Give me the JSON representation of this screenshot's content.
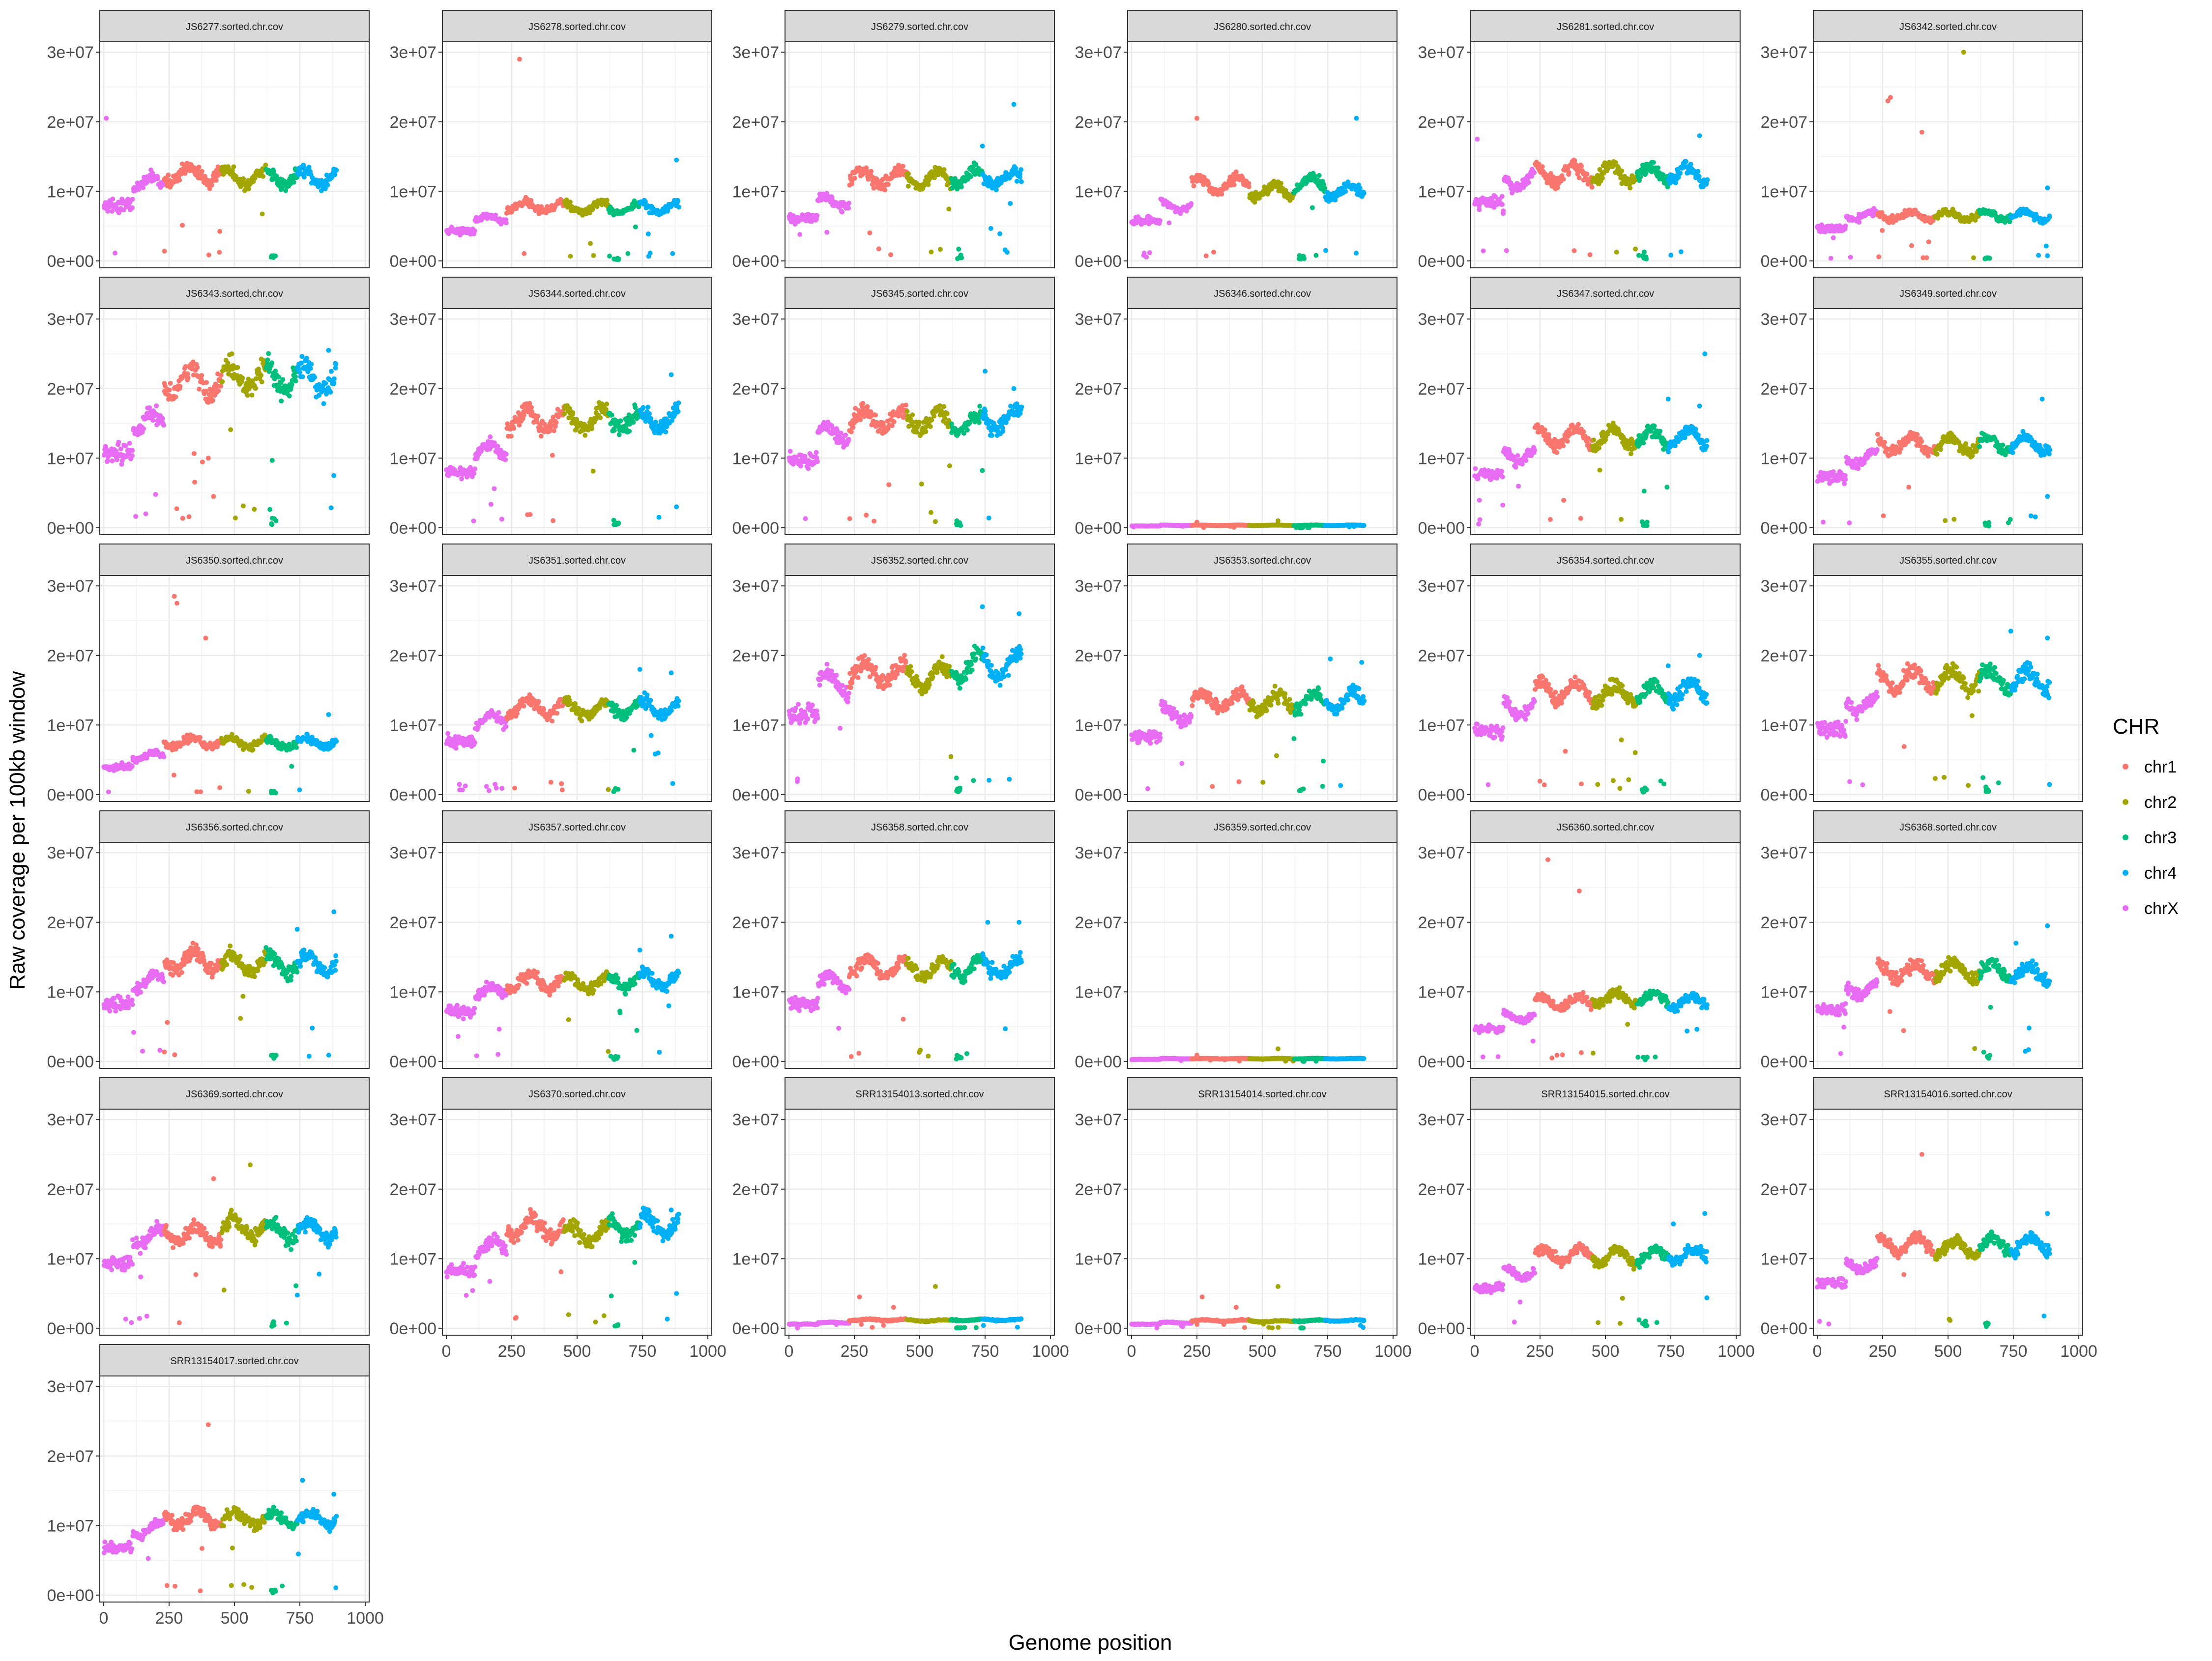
{
  "chart_data": {
    "type": "scatter",
    "facet_layout": "wrap, 6 columns, 6 rows",
    "xlabel": "Genome position",
    "ylabel": "Raw coverage per 100kb window",
    "xlim": [
      -15,
      1015
    ],
    "ylim": [
      -1000000,
      31500000
    ],
    "x_ticks": [
      0,
      250,
      500,
      750,
      1000
    ],
    "x_tick_labels": [
      "0",
      "250",
      "500",
      "750",
      "1000"
    ],
    "y_ticks": [
      0,
      10000000,
      20000000,
      30000000
    ],
    "y_tick_labels": [
      "0e+00",
      "1e+07",
      "2e+07",
      "3e+07"
    ],
    "grid": true,
    "legend": {
      "title": "CHR",
      "position": "right",
      "entries": [
        "chr1",
        "chr2",
        "chr3",
        "chr4",
        "chrX"
      ]
    },
    "series_colors": {
      "chrX": "#E76BF3",
      "chr1": "#F8766D",
      "chr2": "#A3A500",
      "chr3": "#00BF7D",
      "chr4": "#00B0F6"
    },
    "chromosome_ranges": {
      "chrX": [
        0,
        230
      ],
      "chr1": [
        230,
        450
      ],
      "chr2": [
        450,
        620
      ],
      "chr3": [
        620,
        740
      ],
      "chr4": [
        740,
        890
      ]
    },
    "facets": [
      {
        "title": "JS6277.sorted.chr.cov",
        "median_coverage": {
          "chrX": 11000000,
          "chr1": 12500000,
          "chr2": 12000000,
          "chr3": 12000000,
          "chr4": 12000000
        },
        "outliers": [
          [
            10,
            20500000
          ]
        ]
      },
      {
        "title": "JS6278.sorted.chr.cov",
        "median_coverage": {
          "chrX": 6000000,
          "chr1": 7800000,
          "chr2": 7700000,
          "chr3": 7500000,
          "chr4": 7700000
        },
        "outliers": [
          [
            280,
            29000000
          ],
          [
            880,
            14500000
          ]
        ]
      },
      {
        "title": "JS6279.sorted.chr.cov",
        "median_coverage": {
          "chrX": 8500000,
          "chr1": 12000000,
          "chr2": 11800000,
          "chr3": 12000000,
          "chr4": 11800000
        },
        "outliers": [
          [
            860,
            22500000
          ],
          [
            740,
            16500000
          ]
        ]
      },
      {
        "title": "JS6280.sorted.chr.cov",
        "median_coverage": {
          "chrX": 8000000,
          "chr1": 11000000,
          "chr2": 10000000,
          "chr3": 11000000,
          "chr4": 10000000
        },
        "outliers": [
          [
            250,
            20500000
          ],
          [
            860,
            20500000
          ]
        ]
      },
      {
        "title": "JS6281.sorted.chr.cov",
        "median_coverage": {
          "chrX": 11500000,
          "chr1": 12500000,
          "chr2": 12500000,
          "chr3": 12500000,
          "chr4": 12500000
        },
        "outliers": [
          [
            860,
            18000000
          ],
          [
            10,
            17500000
          ]
        ]
      },
      {
        "title": "JS6342.sorted.chr.cov",
        "median_coverage": {
          "chrX": 6500000,
          "chr1": 6500000,
          "chr2": 6500000,
          "chr3": 6500000,
          "chr4": 6500000
        },
        "outliers": [
          [
            560,
            30000000
          ],
          [
            280,
            23500000
          ],
          [
            270,
            23000000
          ],
          [
            400,
            18500000
          ],
          [
            880,
            10500000
          ]
        ]
      },
      {
        "title": "JS6343.sorted.chr.cov",
        "median_coverage": {
          "chrX": 15000000,
          "chr1": 21000000,
          "chr2": 21500000,
          "chr3": 21500000,
          "chr4": 21500000
        },
        "outliers": [
          [
            860,
            25500000
          ],
          [
            490,
            25000000
          ],
          [
            400,
            10000000
          ],
          [
            420,
            4500000
          ],
          [
            880,
            7500000
          ]
        ]
      },
      {
        "title": "JS6344.sorted.chr.cov",
        "median_coverage": {
          "chrX": 11000000,
          "chr1": 15500000,
          "chr2": 15500000,
          "chr3": 15500000,
          "chr4": 15500000
        },
        "outliers": [
          [
            860,
            22000000
          ],
          [
            880,
            3000000
          ]
        ]
      },
      {
        "title": "JS6345.sorted.chr.cov",
        "median_coverage": {
          "chrX": 13500000,
          "chr1": 15500000,
          "chr2": 15500000,
          "chr3": 15000000,
          "chr4": 15500000
        },
        "outliers": [
          [
            750,
            22500000
          ],
          [
            860,
            20000000
          ]
        ]
      },
      {
        "title": "JS6346.sorted.chr.cov",
        "median_coverage": {
          "chrX": 350000,
          "chr1": 350000,
          "chr2": 350000,
          "chr3": 350000,
          "chr4": 350000
        },
        "outliers": [
          [
            560,
            1000000
          ],
          [
            250,
            800000
          ]
        ]
      },
      {
        "title": "JS6347.sorted.chr.cov",
        "median_coverage": {
          "chrX": 10500000,
          "chr1": 13000000,
          "chr2": 12800000,
          "chr3": 13000000,
          "chr4": 13000000
        },
        "outliers": [
          [
            880,
            25000000
          ],
          [
            740,
            18500000
          ],
          [
            860,
            17500000
          ]
        ]
      },
      {
        "title": "JS6349.sorted.chr.cov",
        "median_coverage": {
          "chrX": 10000000,
          "chr1": 12000000,
          "chr2": 12000000,
          "chr3": 12000000,
          "chr4": 12000000
        },
        "outliers": [
          [
            860,
            18500000
          ],
          [
            880,
            4500000
          ]
        ]
      },
      {
        "title": "JS6350.sorted.chr.cov",
        "median_coverage": {
          "chrX": 5500000,
          "chr1": 7500000,
          "chr2": 7500000,
          "chr3": 7300000,
          "chr4": 7500000
        },
        "outliers": [
          [
            270,
            28500000
          ],
          [
            280,
            27500000
          ],
          [
            390,
            22500000
          ],
          [
            860,
            11500000
          ]
        ]
      },
      {
        "title": "JS6351.sorted.chr.cov",
        "median_coverage": {
          "chrX": 10500000,
          "chr1": 12500000,
          "chr2": 12300000,
          "chr3": 12500000,
          "chr4": 12500000
        },
        "outliers": [
          [
            740,
            18000000
          ],
          [
            860,
            17500000
          ]
        ]
      },
      {
        "title": "JS6352.sorted.chr.cov",
        "median_coverage": {
          "chrX": 16000000,
          "chr1": 17500000,
          "chr2": 17000000,
          "chr3": 18500000,
          "chr4": 18500000
        },
        "outliers": [
          [
            740,
            27000000
          ],
          [
            880,
            26000000
          ]
        ]
      },
      {
        "title": "JS6353.sorted.chr.cov",
        "median_coverage": {
          "chrX": 11500000,
          "chr1": 13500000,
          "chr2": 13300000,
          "chr3": 13500000,
          "chr4": 13500000
        },
        "outliers": [
          [
            760,
            19500000
          ],
          [
            880,
            19000000
          ]
        ]
      },
      {
        "title": "JS6354.sorted.chr.cov",
        "median_coverage": {
          "chrX": 12500000,
          "chr1": 14800000,
          "chr2": 14500000,
          "chr3": 14500000,
          "chr4": 14800000
        },
        "outliers": [
          [
            860,
            20000000
          ],
          [
            740,
            18500000
          ]
        ]
      },
      {
        "title": "JS6355.sorted.chr.cov",
        "median_coverage": {
          "chrX": 13000000,
          "chr1": 16500000,
          "chr2": 16500000,
          "chr3": 16500000,
          "chr4": 16500000
        },
        "outliers": [
          [
            740,
            23500000
          ],
          [
            880,
            22500000
          ]
        ]
      },
      {
        "title": "JS6356.sorted.chr.cov",
        "median_coverage": {
          "chrX": 11500000,
          "chr1": 14500000,
          "chr2": 14000000,
          "chr3": 14000000,
          "chr4": 14000000
        },
        "outliers": [
          [
            880,
            21500000
          ],
          [
            740,
            19000000
          ]
        ]
      },
      {
        "title": "JS6357.sorted.chr.cov",
        "median_coverage": {
          "chrX": 10000000,
          "chr1": 11500000,
          "chr2": 11300000,
          "chr3": 11500000,
          "chr4": 11800000
        },
        "outliers": [
          [
            860,
            18000000
          ],
          [
            740,
            16000000
          ]
        ]
      },
      {
        "title": "JS6358.sorted.chr.cov",
        "median_coverage": {
          "chrX": 11500000,
          "chr1": 13500000,
          "chr2": 13300000,
          "chr3": 13500000,
          "chr4": 13500000
        },
        "outliers": [
          [
            880,
            20000000
          ],
          [
            760,
            20000000
          ]
        ]
      },
      {
        "title": "JS6359.sorted.chr.cov",
        "median_coverage": {
          "chrX": 400000,
          "chr1": 400000,
          "chr2": 400000,
          "chr3": 400000,
          "chr4": 400000
        },
        "outliers": [
          [
            560,
            1800000
          ],
          [
            250,
            900000
          ]
        ]
      },
      {
        "title": "JS6360.sorted.chr.cov",
        "median_coverage": {
          "chrX": 6500000,
          "chr1": 8500000,
          "chr2": 9000000,
          "chr3": 9000000,
          "chr4": 8500000
        },
        "outliers": [
          [
            280,
            29000000
          ],
          [
            400,
            24500000
          ]
        ]
      },
      {
        "title": "JS6368.sorted.chr.cov",
        "median_coverage": {
          "chrX": 10500000,
          "chr1": 13000000,
          "chr2": 13000000,
          "chr3": 13000000,
          "chr4": 12500000
        },
        "outliers": [
          [
            880,
            19500000
          ],
          [
            760,
            17000000
          ]
        ]
      },
      {
        "title": "JS6369.sorted.chr.cov",
        "median_coverage": {
          "chrX": 13000000,
          "chr1": 13500000,
          "chr2": 14500000,
          "chr3": 14000000,
          "chr4": 14000000
        },
        "outliers": [
          [
            560,
            23500000
          ],
          [
            420,
            21500000
          ]
        ]
      },
      {
        "title": "JS6370.sorted.chr.cov",
        "median_coverage": {
          "chrX": 11500000,
          "chr1": 14500000,
          "chr2": 13500000,
          "chr3": 14500000,
          "chr4": 15000000
        },
        "outliers": [
          [
            860,
            17000000
          ],
          [
            880,
            5000000
          ]
        ]
      },
      {
        "title": "SRR13154013.sorted.chr.cov",
        "median_coverage": {
          "chrX": 800000,
          "chr1": 1200000,
          "chr2": 1100000,
          "chr3": 1200000,
          "chr4": 1200000
        },
        "outliers": [
          [
            560,
            6000000
          ],
          [
            270,
            4500000
          ],
          [
            400,
            3000000
          ]
        ]
      },
      {
        "title": "SRR13154014.sorted.chr.cov",
        "median_coverage": {
          "chrX": 800000,
          "chr1": 1100000,
          "chr2": 1000000,
          "chr3": 1100000,
          "chr4": 1100000
        },
        "outliers": [
          [
            560,
            6000000
          ],
          [
            270,
            4500000
          ],
          [
            400,
            3000000
          ]
        ]
      },
      {
        "title": "SRR13154015.sorted.chr.cov",
        "median_coverage": {
          "chrX": 8000000,
          "chr1": 10500000,
          "chr2": 10300000,
          "chr3": 10500000,
          "chr4": 10500000
        },
        "outliers": [
          [
            880,
            16500000
          ],
          [
            760,
            15000000
          ]
        ]
      },
      {
        "title": "SRR13154016.sorted.chr.cov",
        "median_coverage": {
          "chrX": 9000000,
          "chr1": 12000000,
          "chr2": 11500000,
          "chr3": 12000000,
          "chr4": 12000000
        },
        "outliers": [
          [
            400,
            25000000
          ],
          [
            880,
            16500000
          ]
        ]
      },
      {
        "title": "SRR13154017.sorted.chr.cov",
        "median_coverage": {
          "chrX": 9500000,
          "chr1": 11000000,
          "chr2": 11000000,
          "chr3": 11000000,
          "chr4": 11000000
        },
        "outliers": [
          [
            400,
            24500000
          ],
          [
            760,
            16500000
          ],
          [
            880,
            14500000
          ]
        ]
      }
    ]
  }
}
